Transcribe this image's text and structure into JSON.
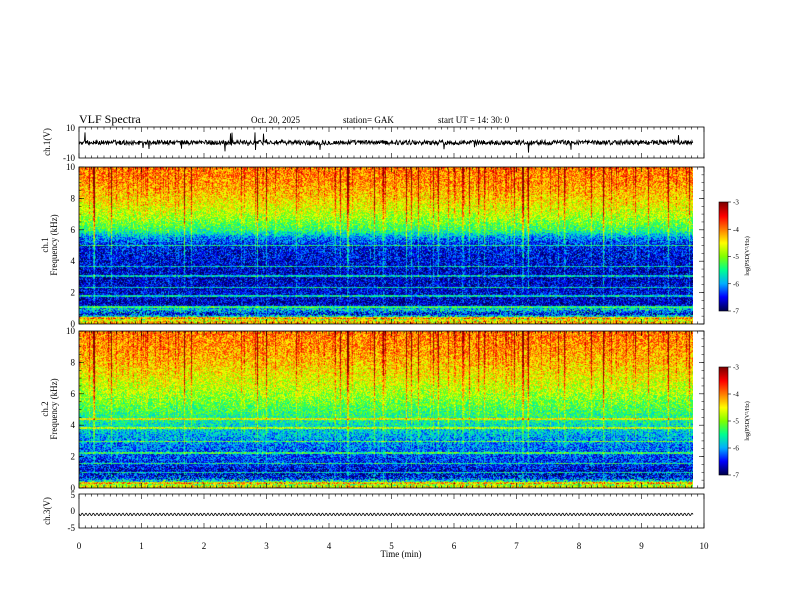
{
  "header": {
    "title": "VLF  Spectra",
    "date": "Oct. 20, 2025",
    "station": "station= GAK",
    "start_ut": "start  UT  =    14: 30: 0"
  },
  "colors": {
    "spectrogram_scale": [
      "#000050",
      "#0000ff",
      "#00b0ff",
      "#00ff90",
      "#80ff00",
      "#ffff00",
      "#ff7f00",
      "#ff0000",
      "#800000"
    ],
    "waveform": "#000000",
    "axis": "#000000"
  },
  "chart_data": [
    {
      "type": "line",
      "name": "ch1-waveform",
      "ylabel": "ch.1(V)",
      "ylim": [
        -10,
        10
      ],
      "yticks": [
        "10",
        "-10"
      ],
      "x_range_min": [
        0,
        9.83
      ],
      "baseline_v": 0,
      "amplitude_v": 3
    },
    {
      "type": "heatmap",
      "name": "ch1-spectrogram",
      "ylabel_channel": "ch.1",
      "ylabel": "Frequency  (kHz)",
      "ylim": [
        0,
        10
      ],
      "yticks": [
        "0",
        "2",
        "4",
        "6",
        "8",
        "10"
      ],
      "x_range_min": [
        0,
        9.83
      ],
      "colorbar": {
        "label": "log(PSD(V²/Hz)",
        "range": [
          -7,
          -3
        ],
        "ticks": [
          "-3",
          "-4",
          "-5",
          "-6",
          "-7"
        ]
      },
      "profile_khz_log": [
        [
          0,
          -4.2
        ],
        [
          0.3,
          -4.8
        ],
        [
          0.6,
          -6.6
        ],
        [
          0.9,
          -5.8
        ],
        [
          1.2,
          -6.7
        ],
        [
          2.0,
          -6.6
        ],
        [
          3.0,
          -6.7
        ],
        [
          4.0,
          -6.6
        ],
        [
          5.0,
          -6.5
        ],
        [
          5.5,
          -6.1
        ],
        [
          6.0,
          -5.4
        ],
        [
          6.8,
          -4.9
        ],
        [
          8.0,
          -4.4
        ],
        [
          9.0,
          -4.1
        ],
        [
          10.0,
          -4.0
        ]
      ],
      "line_khz": [
        0.35,
        1.05,
        1.75,
        2.3,
        3.05,
        3.65,
        5.0
      ]
    },
    {
      "type": "heatmap",
      "name": "ch2-spectrogram",
      "ylabel_channel": "ch.2",
      "ylabel": "Frequency  (kHz)",
      "ylim": [
        0,
        10
      ],
      "yticks": [
        "0",
        "2",
        "4",
        "6",
        "8",
        "10"
      ],
      "x_range_min": [
        0,
        9.83
      ],
      "colorbar": {
        "label": "log(PSD(V²/Hz)",
        "range": [
          -7,
          -3
        ],
        "ticks": [
          "-3",
          "-4",
          "-5",
          "-6",
          "-7"
        ]
      },
      "profile_khz_log": [
        [
          0,
          -4.5
        ],
        [
          0.3,
          -5.2
        ],
        [
          0.6,
          -6.5
        ],
        [
          1.0,
          -6.6
        ],
        [
          1.6,
          -6.4
        ],
        [
          2.5,
          -6.2
        ],
        [
          3.2,
          -6.0
        ],
        [
          4.0,
          -5.7
        ],
        [
          5.0,
          -5.3
        ],
        [
          6.0,
          -4.9
        ],
        [
          7.0,
          -4.6
        ],
        [
          8.0,
          -4.3
        ],
        [
          9.0,
          -4.1
        ],
        [
          10.0,
          -4.0
        ]
      ],
      "line_khz": [
        0.3,
        0.95,
        1.55,
        2.2,
        2.95,
        3.8,
        4.4
      ]
    },
    {
      "type": "line",
      "name": "ch3-waveform",
      "ylabel": "ch.3(V)",
      "ylim": [
        -5,
        5
      ],
      "yticks": [
        "5",
        "0",
        "-5"
      ],
      "x_range_min": [
        0,
        9.83
      ],
      "baseline_v": -1.0,
      "amplitude_v": 0.35
    }
  ],
  "x_axis": {
    "label": "Time  (min)",
    "xlim": [
      0,
      10
    ],
    "ticks": [
      "0",
      "1",
      "2",
      "3",
      "4",
      "5",
      "6",
      "7",
      "8",
      "9",
      "10"
    ]
  }
}
